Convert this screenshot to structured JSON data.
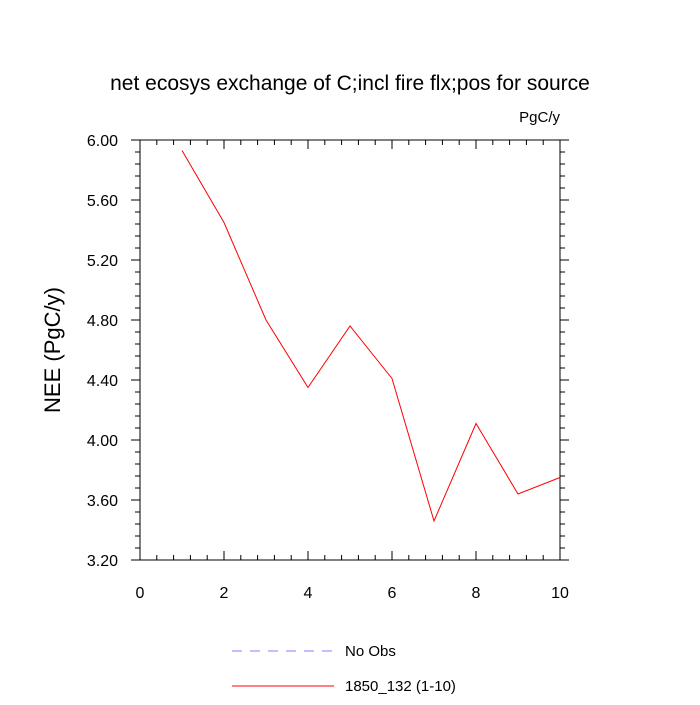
{
  "chart_data": {
    "type": "line",
    "title": "net ecosys exchange of C;incl fire flx;pos for source",
    "units_label": "PgC/y",
    "ylabel": "NEE  (PgC/y)",
    "xlabel": "",
    "xlim": [
      0,
      10
    ],
    "ylim": [
      3.2,
      6.0
    ],
    "x_ticks": [
      0,
      2,
      4,
      6,
      8,
      10
    ],
    "x_tick_labels": [
      "0",
      "2",
      "4",
      "6",
      "8",
      "10"
    ],
    "y_ticks": [
      3.2,
      3.6,
      4.0,
      4.4,
      4.8,
      5.2,
      5.6,
      6.0
    ],
    "y_tick_labels": [
      "3.20",
      "3.60",
      "4.00",
      "4.40",
      "4.80",
      "5.20",
      "5.60",
      "6.00"
    ],
    "grid": false,
    "legend_position": "bottom-center",
    "series": [
      {
        "name": "No Obs",
        "color": "#8080ff",
        "dashed": true,
        "x": [],
        "values": []
      },
      {
        "name": "1850_132 (1-10)",
        "color": "#ff0000",
        "dashed": false,
        "x": [
          1,
          2,
          3,
          4,
          5,
          6,
          7,
          8,
          9,
          10
        ],
        "values": [
          5.93,
          5.45,
          4.8,
          4.35,
          4.76,
          4.41,
          3.46,
          4.11,
          3.64,
          3.75
        ]
      }
    ]
  }
}
